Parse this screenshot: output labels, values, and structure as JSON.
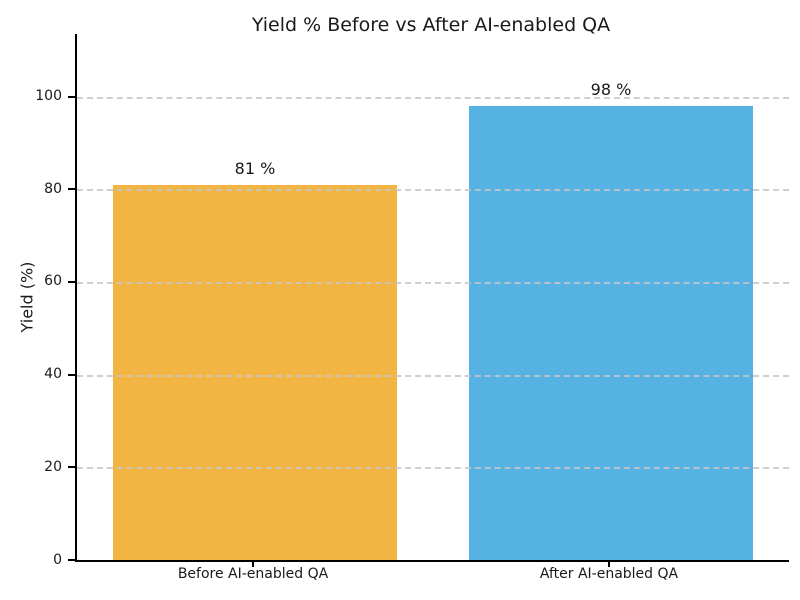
{
  "chart_data": {
    "type": "bar",
    "title": "Yield % Before vs After AI-enabled QA",
    "categories": [
      "Before AI-enabled QA",
      "After AI-enabled QA"
    ],
    "values": [
      81,
      98
    ],
    "value_labels": [
      "81 %",
      "98 %"
    ],
    "bar_colors": [
      "#f2b442",
      "#56b2e3"
    ],
    "xlabel": "",
    "ylabel": "Yield (%)",
    "yticks": [
      0,
      20,
      40,
      60,
      80,
      100
    ],
    "ylim": [
      0,
      113.5
    ],
    "grid": "horizontal dashed, drawn over bars",
    "grid_color": "#c7c7c7",
    "axis_color": "#000000",
    "text_color": "#1a1a1a",
    "legend_position": "none"
  }
}
